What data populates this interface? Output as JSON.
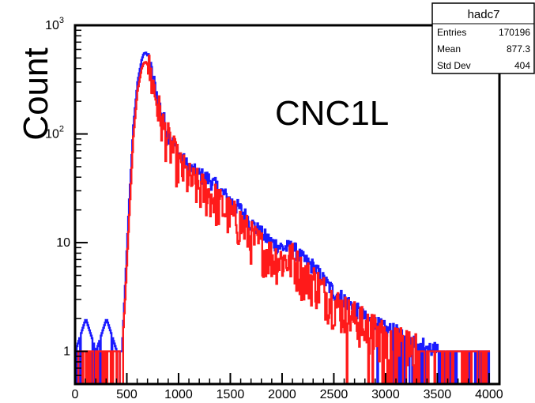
{
  "chart_data": {
    "type": "histogram",
    "title": "",
    "xlabel": "",
    "ylabel": "Count",
    "annotation": "CNC1L",
    "xlim": [
      0,
      4100
    ],
    "ylim": [
      0.5,
      1000
    ],
    "yscale": "log",
    "grid": false,
    "x_ticks": [
      0,
      500,
      1000,
      1500,
      2000,
      2500,
      3000,
      3500,
      4000
    ],
    "x_tick_labels": [
      "0",
      "500",
      "1000",
      "1500",
      "2000",
      "2500",
      "3000",
      "3500",
      "4000"
    ],
    "y_ticks": [
      {
        "value": 1,
        "base": "1",
        "exp": ""
      },
      {
        "value": 10,
        "base": "10",
        "exp": ""
      },
      {
        "value": 100,
        "base": "10",
        "exp": "2"
      },
      {
        "value": 1000,
        "base": "10",
        "exp": "3"
      }
    ],
    "stats_box": {
      "name": "hadc7",
      "placement": "top-right",
      "rows": [
        {
          "label": "Entries",
          "value": "170196"
        },
        {
          "label": "Mean",
          "value": "877.3"
        },
        {
          "label": "Std Dev",
          "value": "404"
        }
      ]
    },
    "series": [
      {
        "color": "#1a1aff",
        "x": [
          0,
          100,
          200,
          300,
          400,
          450,
          480,
          520,
          560,
          600,
          640,
          660,
          680,
          700,
          720,
          760,
          800,
          850,
          900,
          1000,
          1100,
          1200,
          1300,
          1400,
          1500,
          1600,
          1700,
          1800,
          1900,
          2000,
          2100,
          2200,
          2300,
          2400,
          2500,
          2600,
          2700,
          2800,
          2900,
          3000,
          3100,
          3200,
          3300,
          3400,
          3500,
          3600,
          3700,
          3800,
          3900,
          4000
        ],
        "y": [
          1,
          2,
          1,
          2,
          1,
          1,
          4,
          25,
          120,
          300,
          480,
          550,
          560,
          520,
          430,
          300,
          200,
          140,
          100,
          65,
          48,
          42,
          38,
          30,
          24,
          20,
          15,
          12,
          10,
          9,
          9,
          7,
          6,
          4.5,
          3.5,
          3,
          2.5,
          2,
          1.8,
          1.6,
          1.5,
          1.3,
          1.2,
          1.1,
          1,
          1,
          1,
          1,
          1,
          1
        ]
      },
      {
        "color": "#ff1a1a",
        "x": [
          0,
          100,
          200,
          300,
          400,
          450,
          480,
          520,
          560,
          600,
          640,
          660,
          680,
          700,
          720,
          760,
          800,
          850,
          900,
          1000,
          1100,
          1200,
          1300,
          1400,
          1500,
          1600,
          1700,
          1800,
          1900,
          2000,
          2100,
          2200,
          2300,
          2400,
          2500,
          2600,
          2700,
          2800,
          2900,
          3000,
          3100,
          3200,
          3300,
          3400,
          3500,
          3600,
          3700,
          3800,
          3900,
          4000
        ],
        "y": [
          1,
          1,
          1,
          1,
          1,
          1,
          3,
          18,
          95,
          250,
          400,
          450,
          460,
          430,
          360,
          260,
          170,
          115,
          85,
          52,
          38,
          32,
          28,
          22,
          18,
          15,
          11,
          9,
          7.5,
          7,
          7,
          5,
          4.5,
          3.5,
          2.8,
          2.3,
          2,
          1.7,
          1.5,
          1.3,
          1.2,
          1.1,
          1,
          1,
          1,
          1,
          1,
          1,
          1,
          1
        ]
      }
    ]
  }
}
